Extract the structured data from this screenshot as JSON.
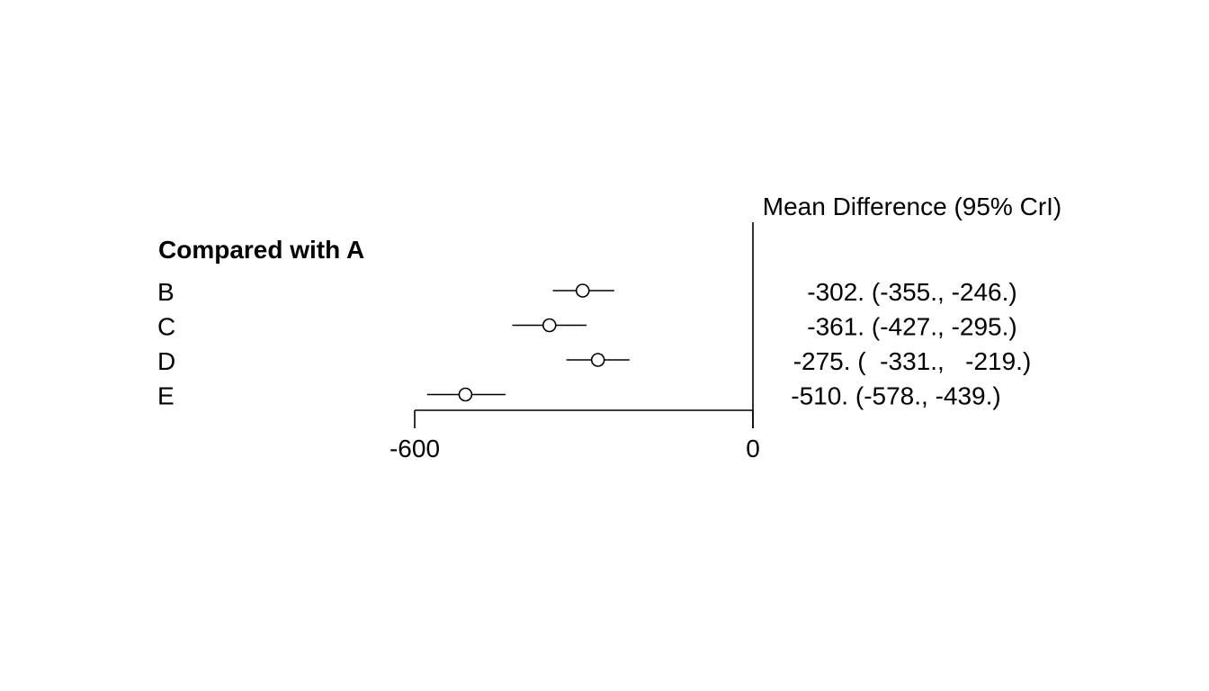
{
  "chart_data": {
    "type": "forest",
    "header": "Mean Difference (95% CrI)",
    "group_label": "Compared with A",
    "xlim": [
      -600,
      0
    ],
    "ticks": [
      -600,
      0
    ],
    "tick_labels": [
      "-600",
      "0"
    ],
    "reference_line": 0,
    "rows": [
      {
        "label": "B",
        "mean": -302,
        "lower": -355,
        "upper": -246,
        "text": "-302. (-355., -246.)"
      },
      {
        "label": "C",
        "mean": -361,
        "lower": -427,
        "upper": -295,
        "text": "-361. (-427., -295.)"
      },
      {
        "label": "D",
        "mean": -275,
        "lower": -331,
        "upper": -219,
        "text": "-275. (  -331.,   -219.)"
      },
      {
        "label": "E",
        "mean": -510,
        "lower": -578,
        "upper": -439,
        "text": "-510. (-578., -439.)"
      }
    ]
  }
}
